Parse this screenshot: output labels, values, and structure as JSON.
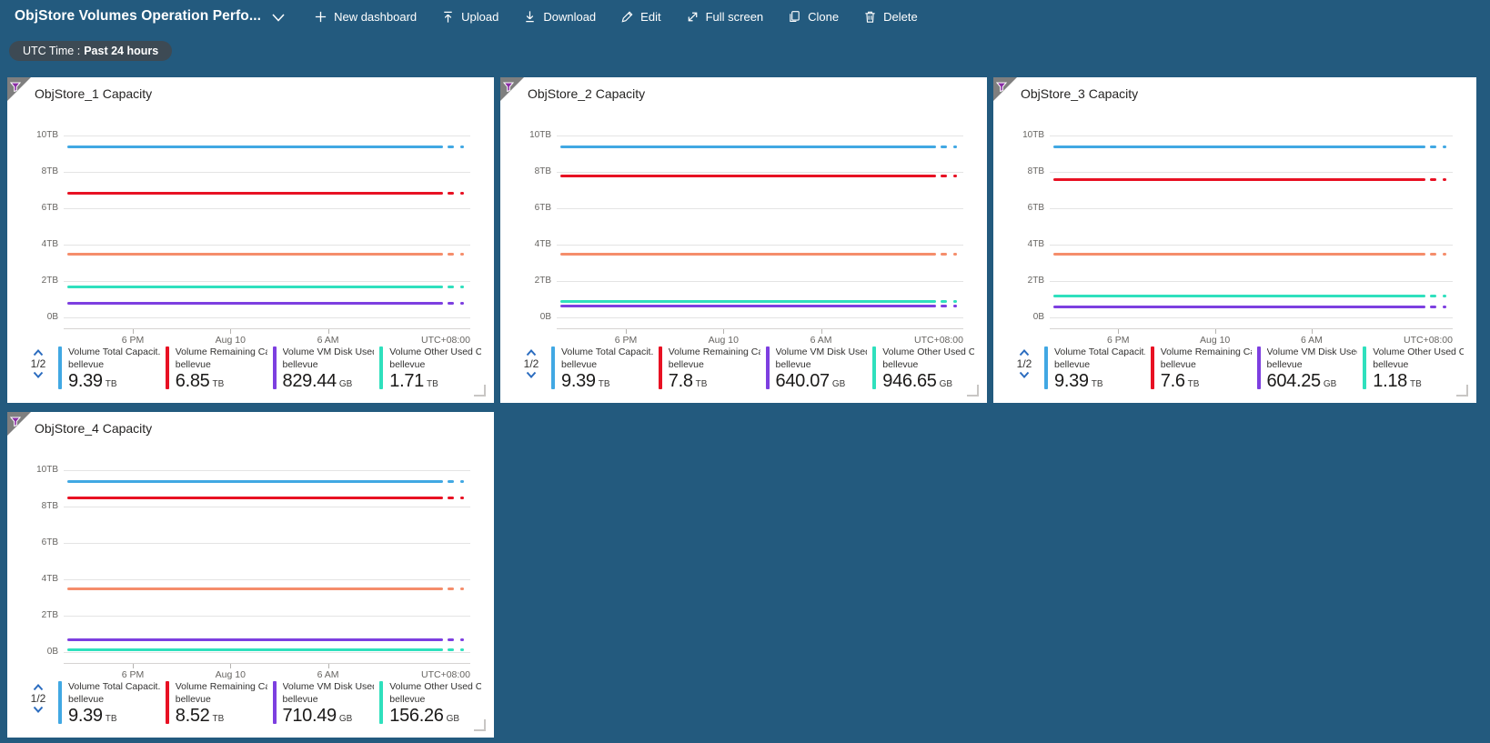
{
  "toolbar": {
    "title": "ObjStore Volumes Operation Perfo...",
    "actions": [
      "New dashboard",
      "Upload",
      "Download",
      "Edit",
      "Full screen",
      "Clone",
      "Delete"
    ]
  },
  "time_filter": {
    "label": "UTC Time :",
    "value": "Past 24 hours"
  },
  "colors": {
    "page_bg": "#235a7e",
    "pill_bg": "#3d4a54",
    "tile_bg": "#ffffff",
    "corner_gray": "#7f7f7f",
    "funnel_purple": "#8a2da5",
    "pager_blue": "#2b6cbf",
    "series_blue": "#41a8e3",
    "series_red": "#e81123",
    "series_orange": "#f58d6b",
    "series_teal": "#2fe0bd",
    "series_purple": "#7d3fe0"
  },
  "chart_data": [
    {
      "type": "line",
      "title": "ObjStore_1 Capacity",
      "ylim_tb": [
        0,
        10
      ],
      "y_ticks": [
        "10TB",
        "8TB",
        "6TB",
        "4TB",
        "2TB",
        "0B"
      ],
      "x_ticks": [
        "6 PM",
        "Aug 10",
        "6 AM"
      ],
      "x_right_label": "UTC+08:00",
      "legend_page": "1/2",
      "series": [
        {
          "name": "Volume Total Capacit...",
          "resource": "bellevue",
          "value": "9.39",
          "unit": "TB",
          "tb": 9.39,
          "color": "#41a8e3"
        },
        {
          "name": "Volume Remaining Cap...",
          "resource": "bellevue",
          "value": "6.85",
          "unit": "TB",
          "tb": 6.85,
          "color": "#e81123"
        },
        {
          "name": "Volume VM Disk Used ...",
          "resource": "bellevue",
          "value": "829.44",
          "unit": "GB",
          "tb": 0.81,
          "color": "#7d3fe0"
        },
        {
          "name": "Volume Other Used Ca...",
          "resource": "bellevue",
          "value": "1.71",
          "unit": "TB",
          "tb": 1.71,
          "color": "#2fe0bd"
        }
      ],
      "unlabeled_lines": [
        {
          "tb": 3.5,
          "color": "#f58d6b"
        }
      ]
    },
    {
      "type": "line",
      "title": "ObjStore_2 Capacity",
      "ylim_tb": [
        0,
        10
      ],
      "y_ticks": [
        "10TB",
        "8TB",
        "6TB",
        "4TB",
        "2TB",
        "0B"
      ],
      "x_ticks": [
        "6 PM",
        "Aug 10",
        "6 AM"
      ],
      "x_right_label": "UTC+08:00",
      "legend_page": "1/2",
      "series": [
        {
          "name": "Volume Total Capacit...",
          "resource": "bellevue",
          "value": "9.39",
          "unit": "TB",
          "tb": 9.39,
          "color": "#41a8e3"
        },
        {
          "name": "Volume Remaining Cap...",
          "resource": "bellevue",
          "value": "7.8",
          "unit": "TB",
          "tb": 7.8,
          "color": "#e81123"
        },
        {
          "name": "Volume VM Disk Used ...",
          "resource": "bellevue",
          "value": "640.07",
          "unit": "GB",
          "tb": 0.63,
          "color": "#7d3fe0"
        },
        {
          "name": "Volume Other Used Ca...",
          "resource": "bellevue",
          "value": "946.65",
          "unit": "GB",
          "tb": 0.92,
          "color": "#2fe0bd"
        }
      ],
      "unlabeled_lines": [
        {
          "tb": 3.5,
          "color": "#f58d6b"
        }
      ]
    },
    {
      "type": "line",
      "title": "ObjStore_3 Capacity",
      "ylim_tb": [
        0,
        10
      ],
      "y_ticks": [
        "10TB",
        "8TB",
        "6TB",
        "4TB",
        "2TB",
        "0B"
      ],
      "x_ticks": [
        "6 PM",
        "Aug 10",
        "6 AM"
      ],
      "x_right_label": "UTC+08:00",
      "legend_page": "1/2",
      "series": [
        {
          "name": "Volume Total Capacit...",
          "resource": "bellevue",
          "value": "9.39",
          "unit": "TB",
          "tb": 9.39,
          "color": "#41a8e3"
        },
        {
          "name": "Volume Remaining Cap...",
          "resource": "bellevue",
          "value": "7.6",
          "unit": "TB",
          "tb": 7.6,
          "color": "#e81123"
        },
        {
          "name": "Volume VM Disk Used ...",
          "resource": "bellevue",
          "value": "604.25",
          "unit": "GB",
          "tb": 0.59,
          "color": "#7d3fe0"
        },
        {
          "name": "Volume Other Used Ca...",
          "resource": "bellevue",
          "value": "1.18",
          "unit": "TB",
          "tb": 1.18,
          "color": "#2fe0bd"
        }
      ],
      "unlabeled_lines": [
        {
          "tb": 3.5,
          "color": "#f58d6b"
        }
      ]
    },
    {
      "type": "line",
      "title": "ObjStore_4 Capacity",
      "ylim_tb": [
        0,
        10
      ],
      "y_ticks": [
        "10TB",
        "8TB",
        "6TB",
        "4TB",
        "2TB",
        "0B"
      ],
      "x_ticks": [
        "6 PM",
        "Aug 10",
        "6 AM"
      ],
      "x_right_label": "UTC+08:00",
      "legend_page": "1/2",
      "series": [
        {
          "name": "Volume Total Capacit...",
          "resource": "bellevue",
          "value": "9.39",
          "unit": "TB",
          "tb": 9.39,
          "color": "#41a8e3"
        },
        {
          "name": "Volume Remaining Cap...",
          "resource": "bellevue",
          "value": "8.52",
          "unit": "TB",
          "tb": 8.52,
          "color": "#e81123"
        },
        {
          "name": "Volume VM Disk Used ...",
          "resource": "bellevue",
          "value": "710.49",
          "unit": "GB",
          "tb": 0.69,
          "color": "#7d3fe0"
        },
        {
          "name": "Volume Other Used Ca...",
          "resource": "bellevue",
          "value": "156.26",
          "unit": "GB",
          "tb": 0.15,
          "color": "#2fe0bd"
        }
      ],
      "unlabeled_lines": [
        {
          "tb": 3.5,
          "color": "#f58d6b"
        }
      ]
    }
  ]
}
